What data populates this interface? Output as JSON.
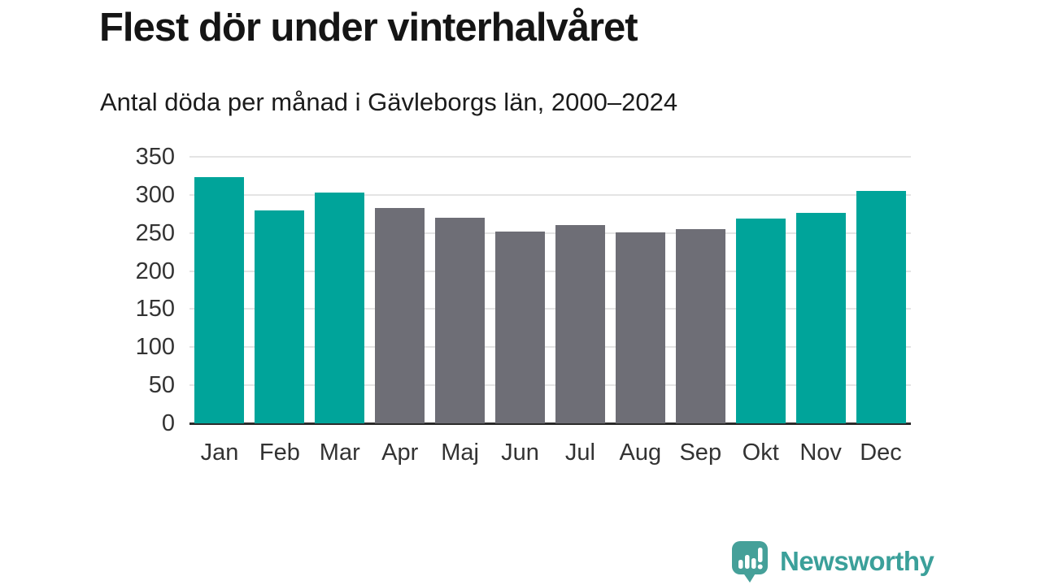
{
  "header": {
    "title": "Flest dör under vinterhalvåret",
    "subtitle": "Antal döda per månad i Gävleborgs län, 2000–2024"
  },
  "chart_data": {
    "type": "bar",
    "title": "Flest dör under vinterhalvåret",
    "subtitle": "Antal döda per månad i Gävleborgs län, 2000–2024",
    "categories": [
      "Jan",
      "Feb",
      "Mar",
      "Apr",
      "Maj",
      "Jun",
      "Jul",
      "Aug",
      "Sep",
      "Okt",
      "Nov",
      "Dec"
    ],
    "values": [
      323,
      280,
      303,
      283,
      270,
      252,
      260,
      251,
      255,
      269,
      276,
      305
    ],
    "bar_colors": [
      "teal",
      "teal",
      "teal",
      "gray",
      "gray",
      "gray",
      "gray",
      "gray",
      "gray",
      "teal",
      "teal",
      "teal"
    ],
    "colors": {
      "teal": "#00a49a",
      "gray": "#6e6e76"
    },
    "xlabel": "",
    "ylabel": "",
    "ylim": [
      0,
      350
    ],
    "yticks": [
      0,
      50,
      100,
      150,
      200,
      250,
      300,
      350
    ],
    "grid": true,
    "legend": "none",
    "gridline_color": "#e4e4e4",
    "axis_line_color": "#2b2b2b",
    "tick_label_color": "#333333",
    "background": "#ffffff"
  },
  "footer": {
    "brand": "Newsworthy",
    "logo_icon": "bar-chart-speech-bubble-icon",
    "brand_color": "#3ba09a",
    "logo_fill": "#45a099"
  }
}
